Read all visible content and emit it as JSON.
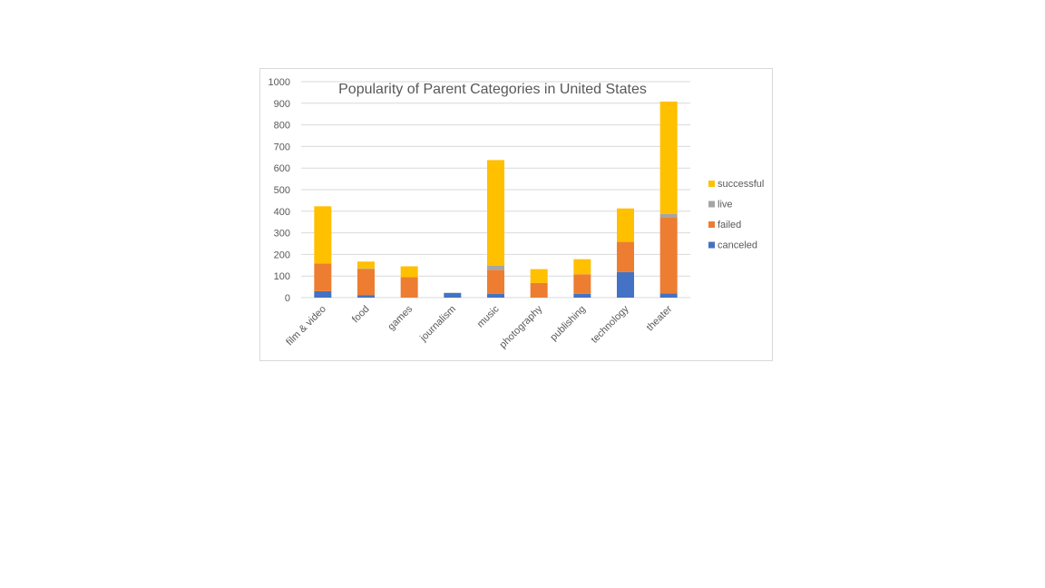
{
  "chart_data": {
    "type": "bar",
    "stacked": true,
    "title": "Popularity of Parent Categories in  United States",
    "xlabel": "",
    "ylabel": "",
    "ylim": [
      0,
      1000
    ],
    "yticks": [
      0,
      100,
      200,
      300,
      400,
      500,
      600,
      700,
      800,
      900,
      1000
    ],
    "grid": true,
    "legend_position": "right",
    "categories": [
      "film & video",
      "food",
      "games",
      "journalism",
      "music",
      "photography",
      "publishing",
      "technology",
      "theater"
    ],
    "series": [
      {
        "name": "canceled",
        "color": "#4472c4",
        "values": [
          30,
          12,
          0,
          22,
          17,
          0,
          18,
          118,
          20
        ]
      },
      {
        "name": "failed",
        "color": "#ed7d31",
        "values": [
          128,
          120,
          95,
          0,
          112,
          68,
          90,
          140,
          353
        ]
      },
      {
        "name": "live",
        "color": "#a5a5a5",
        "values": [
          0,
          3,
          0,
          0,
          18,
          0,
          0,
          0,
          15
        ]
      },
      {
        "name": "successful",
        "color": "#ffc000",
        "values": [
          265,
          32,
          50,
          0,
          490,
          64,
          70,
          155,
          520
        ]
      }
    ]
  }
}
